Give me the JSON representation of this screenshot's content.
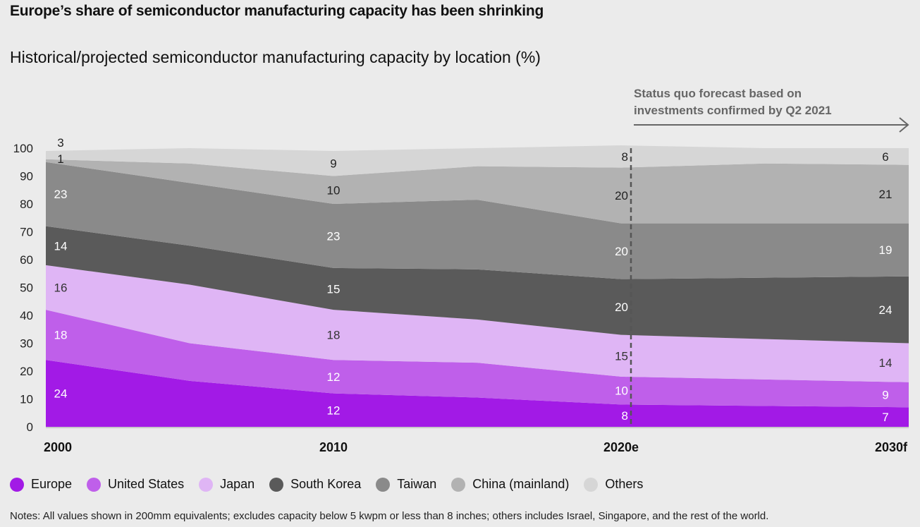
{
  "title": "Europe’s share of semiconductor manufacturing capacity has been shrinking",
  "colors": {
    "accent": "#a100e3",
    "series": [
      "#a21ae6",
      "#bf5fea",
      "#dfb5f5",
      "#5a5a5a",
      "#8a8a8a",
      "#b2b2b2",
      "#d6d6d6"
    ]
  },
  "forecast_note": {
    "line1": "Status quo forecast based on",
    "line2": "investments confirmed by Q2 2021"
  },
  "chart_data": {
    "type": "area",
    "stacked": true,
    "title": "Historical/projected semiconductor manufacturing capacity by location (%)",
    "x": [
      "2000",
      "2005",
      "2010",
      "2015",
      "2020e",
      "2025",
      "2030f"
    ],
    "x_tick_labels": [
      "2000",
      "2010",
      "2020e",
      "2030f"
    ],
    "y_ticks": [
      "0",
      "10",
      "20",
      "30",
      "40",
      "50",
      "60",
      "70",
      "80",
      "90",
      "100"
    ],
    "ylim": [
      0,
      100
    ],
    "forecast_start": "2020e",
    "series": [
      {
        "name": "Europe",
        "values": [
          24,
          16.5,
          12,
          10.5,
          8,
          7.5,
          7
        ]
      },
      {
        "name": "United States",
        "values": [
          18,
          13.5,
          12,
          12.5,
          10,
          9.5,
          9
        ]
      },
      {
        "name": "Japan",
        "values": [
          16,
          21,
          18,
          15.5,
          15,
          14.5,
          14
        ]
      },
      {
        "name": "South Korea",
        "values": [
          14,
          14,
          15,
          18,
          20,
          22,
          24
        ]
      },
      {
        "name": "Taiwan",
        "values": [
          23,
          22.5,
          23,
          25,
          20,
          19.5,
          19
        ]
      },
      {
        "name": "China (mainland)",
        "values": [
          1,
          7,
          10,
          12,
          20,
          21.5,
          21
        ]
      },
      {
        "name": "Others",
        "values": [
          3,
          5.5,
          9,
          6.5,
          8,
          5.5,
          6
        ]
      }
    ],
    "data_labels": [
      {
        "series": 0,
        "x_index": 0,
        "text": "24",
        "color": "#ffffff"
      },
      {
        "series": 1,
        "x_index": 0,
        "text": "18",
        "color": "#ffffff"
      },
      {
        "series": 2,
        "x_index": 0,
        "text": "16",
        "color": "#333333"
      },
      {
        "series": 3,
        "x_index": 0,
        "text": "14",
        "color": "#ffffff"
      },
      {
        "series": 4,
        "x_index": 0,
        "text": "23",
        "color": "#ffffff"
      },
      {
        "series": 5,
        "x_index": 0,
        "text": "1",
        "color": "#222222"
      },
      {
        "series": 6,
        "x_index": 0,
        "text": "3",
        "color": "#222222"
      },
      {
        "series": 0,
        "x_index": 2,
        "text": "12",
        "color": "#ffffff"
      },
      {
        "series": 1,
        "x_index": 2,
        "text": "12",
        "color": "#ffffff"
      },
      {
        "series": 2,
        "x_index": 2,
        "text": "18",
        "color": "#333333"
      },
      {
        "series": 3,
        "x_index": 2,
        "text": "15",
        "color": "#ffffff"
      },
      {
        "series": 4,
        "x_index": 2,
        "text": "23",
        "color": "#ffffff"
      },
      {
        "series": 5,
        "x_index": 2,
        "text": "10",
        "color": "#222222"
      },
      {
        "series": 6,
        "x_index": 2,
        "text": "9",
        "color": "#222222"
      },
      {
        "series": 0,
        "x_index": 4,
        "text": "8",
        "color": "#ffffff"
      },
      {
        "series": 1,
        "x_index": 4,
        "text": "10",
        "color": "#ffffff"
      },
      {
        "series": 2,
        "x_index": 4,
        "text": "15",
        "color": "#333333"
      },
      {
        "series": 3,
        "x_index": 4,
        "text": "20",
        "color": "#ffffff"
      },
      {
        "series": 4,
        "x_index": 4,
        "text": "20",
        "color": "#ffffff"
      },
      {
        "series": 5,
        "x_index": 4,
        "text": "20",
        "color": "#222222"
      },
      {
        "series": 6,
        "x_index": 4,
        "text": "8",
        "color": "#222222"
      },
      {
        "series": 0,
        "x_index": 6,
        "text": "7",
        "color": "#ffffff"
      },
      {
        "series": 1,
        "x_index": 6,
        "text": "9",
        "color": "#ffffff"
      },
      {
        "series": 2,
        "x_index": 6,
        "text": "14",
        "color": "#333333"
      },
      {
        "series": 3,
        "x_index": 6,
        "text": "24",
        "color": "#ffffff"
      },
      {
        "series": 4,
        "x_index": 6,
        "text": "19",
        "color": "#ffffff"
      },
      {
        "series": 5,
        "x_index": 6,
        "text": "21",
        "color": "#222222"
      },
      {
        "series": 6,
        "x_index": 6,
        "text": "6",
        "color": "#222222"
      }
    ],
    "legend_placement": "bottom",
    "grid": false
  },
  "notes": "Notes: All values shown in 200mm equivalents; excludes capacity below 5 kwpm or less than 8 inches; others includes Israel, Singapore, and the rest of the world."
}
